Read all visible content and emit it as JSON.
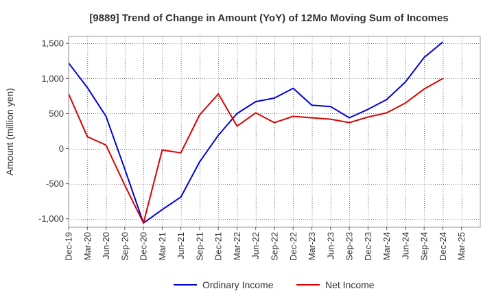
{
  "chart_data": {
    "type": "line",
    "title": "[9889]  Trend of Change in Amount (YoY) of 12Mo Moving Sum of Incomes",
    "ylabel": "Amount (million yen)",
    "xlabel": "",
    "ylim": [
      -1120,
      1600
    ],
    "yticks": [
      -1000,
      -500,
      0,
      500,
      1000,
      1500
    ],
    "ytick_labels": [
      "-1,000",
      "-500",
      "0",
      "500",
      "1,000",
      "1,500"
    ],
    "x": [
      "Dec-19",
      "Mar-20",
      "Jun-20",
      "Sep-20",
      "Dec-20",
      "Mar-21",
      "Jun-21",
      "Sep-21",
      "Dec-21",
      "Mar-22",
      "Jun-22",
      "Sep-22",
      "Dec-22",
      "Mar-23",
      "Jun-23",
      "Sep-23",
      "Dec-23",
      "Mar-24",
      "Jun-24",
      "Sep-24",
      "Dec-24",
      "Mar-25"
    ],
    "grid": true,
    "legend_position": "bottom",
    "series": [
      {
        "name": "Ordinary Income",
        "color": "#0000dd",
        "values": [
          1220,
          870,
          460,
          -290,
          -1060,
          -870,
          -690,
          -190,
          190,
          500,
          670,
          720,
          860,
          620,
          600,
          440,
          560,
          700,
          950,
          1300,
          1520,
          null
        ]
      },
      {
        "name": "Net Income",
        "color": "#dd0000",
        "values": [
          780,
          170,
          50,
          -520,
          -1060,
          -20,
          -60,
          480,
          780,
          320,
          510,
          370,
          460,
          440,
          420,
          370,
          450,
          510,
          650,
          850,
          1000,
          null
        ]
      }
    ]
  }
}
